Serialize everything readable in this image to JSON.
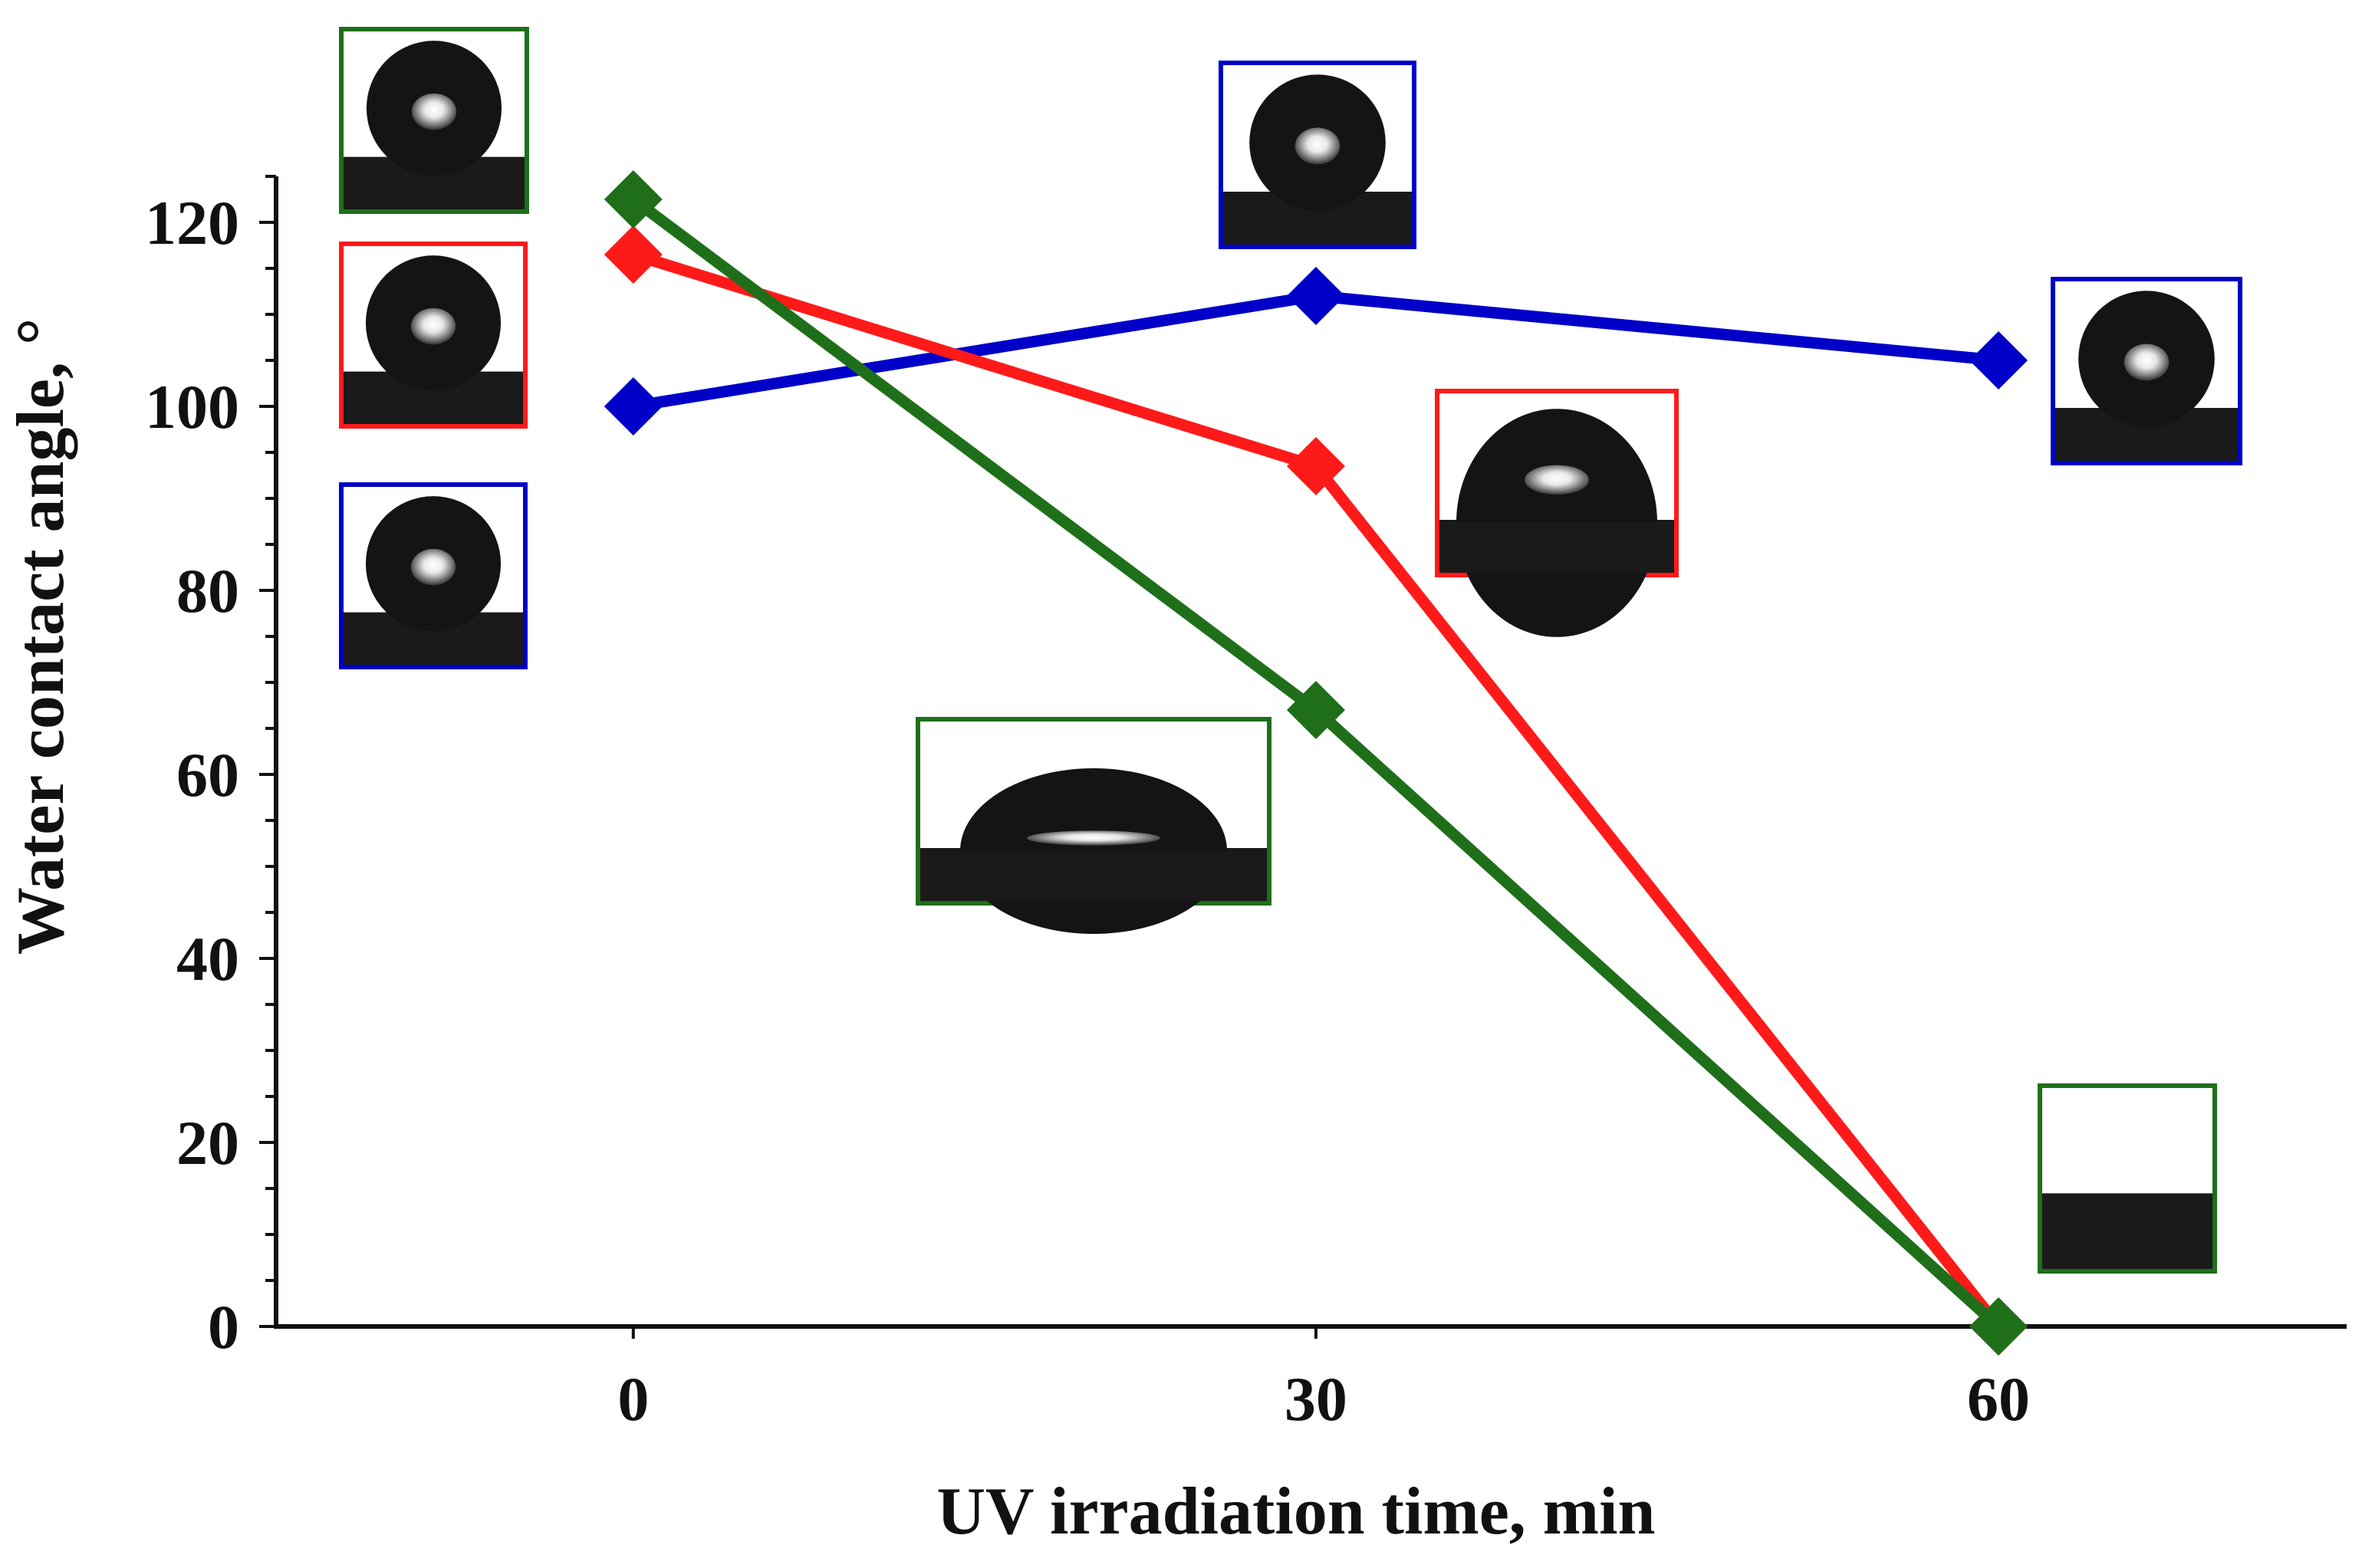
{
  "chart_data": {
    "type": "line",
    "title": "",
    "xlabel": "UV irradiation time, min",
    "ylabel": "Water contact angle, °",
    "x": [
      0,
      30,
      60
    ],
    "xticks": [
      "0",
      "30",
      "60"
    ],
    "xlim": [
      -15.7,
      75.3
    ],
    "yticks": [
      "0",
      "20",
      "40",
      "60",
      "80",
      "100",
      "120"
    ],
    "ylim": [
      0,
      125
    ],
    "grid": false,
    "legend": "none",
    "marker": "diamond",
    "series": [
      {
        "color": "#0000c8",
        "values": [
          100,
          112,
          105
        ]
      },
      {
        "color": "#ff1a1a",
        "values": [
          116.5,
          93.5,
          0
        ]
      },
      {
        "color": "#1f6f1a",
        "values": [
          122.5,
          67,
          0
        ]
      }
    ],
    "droplet_insets": [
      {
        "series": 2,
        "x": 0,
        "shape": "sphere"
      },
      {
        "series": 1,
        "x": 0,
        "shape": "sphere"
      },
      {
        "series": 0,
        "x": 0,
        "shape": "sphere"
      },
      {
        "series": 0,
        "x": 30,
        "shape": "sphere"
      },
      {
        "series": 1,
        "x": 30,
        "shape": "dome"
      },
      {
        "series": 2,
        "x": 30,
        "shape": "cap"
      },
      {
        "series": 0,
        "x": 60,
        "shape": "sphere"
      },
      {
        "series": 2,
        "x": 60,
        "shape": "flat"
      }
    ]
  }
}
